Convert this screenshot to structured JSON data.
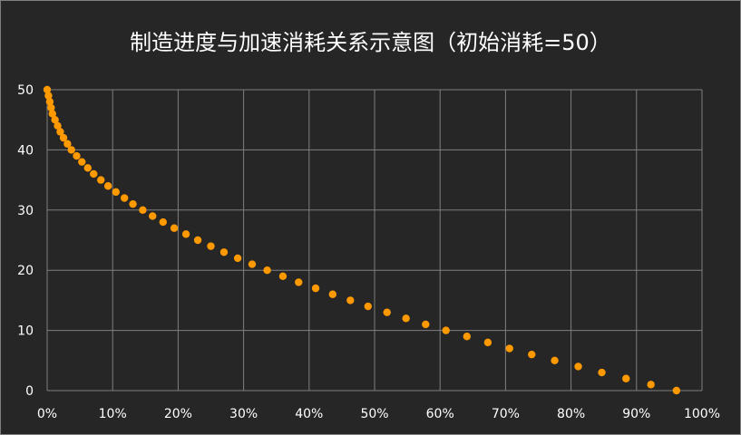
{
  "chart_data": {
    "type": "scatter",
    "title": "制造进度与加速消耗关系示意图（初始消耗=50）",
    "xlabel": "",
    "ylabel": "",
    "xlim": [
      0,
      1
    ],
    "ylim": [
      0,
      50
    ],
    "x_ticks": [
      "0%",
      "10%",
      "20%",
      "30%",
      "40%",
      "50%",
      "60%",
      "70%",
      "80%",
      "90%",
      "100%"
    ],
    "y_ticks": [
      "0",
      "10",
      "20",
      "30",
      "40",
      "50"
    ],
    "grid": true,
    "legend": "none",
    "colors": {
      "background": "#262626",
      "grid": "#7f7f7f",
      "points": "#ff9900",
      "text": "#ffffff"
    },
    "series": [
      {
        "points": [
          [
            0.0,
            50
          ],
          [
            0.002,
            49
          ],
          [
            0.004,
            48
          ],
          [
            0.006,
            47
          ],
          [
            0.008,
            46
          ],
          [
            0.012,
            45
          ],
          [
            0.016,
            44
          ],
          [
            0.02,
            43
          ],
          [
            0.025,
            42
          ],
          [
            0.031,
            41
          ],
          [
            0.037,
            40
          ],
          [
            0.045,
            39
          ],
          [
            0.053,
            38
          ],
          [
            0.062,
            37
          ],
          [
            0.071,
            36
          ],
          [
            0.082,
            35
          ],
          [
            0.093,
            34
          ],
          [
            0.105,
            33
          ],
          [
            0.118,
            32
          ],
          [
            0.131,
            31
          ],
          [
            0.146,
            30
          ],
          [
            0.161,
            29
          ],
          [
            0.177,
            28
          ],
          [
            0.194,
            27
          ],
          [
            0.212,
            26
          ],
          [
            0.23,
            25
          ],
          [
            0.25,
            24
          ],
          [
            0.27,
            23
          ],
          [
            0.291,
            22
          ],
          [
            0.313,
            21
          ],
          [
            0.336,
            20
          ],
          [
            0.36,
            19
          ],
          [
            0.384,
            18
          ],
          [
            0.41,
            17
          ],
          [
            0.436,
            16
          ],
          [
            0.463,
            15
          ],
          [
            0.49,
            14
          ],
          [
            0.519,
            13
          ],
          [
            0.548,
            12
          ],
          [
            0.578,
            11
          ],
          [
            0.609,
            10
          ],
          [
            0.641,
            9
          ],
          [
            0.673,
            8
          ],
          [
            0.706,
            7
          ],
          [
            0.74,
            6
          ],
          [
            0.775,
            5
          ],
          [
            0.811,
            4
          ],
          [
            0.847,
            3
          ],
          [
            0.884,
            2
          ],
          [
            0.922,
            1
          ],
          [
            0.961,
            0
          ]
        ]
      }
    ]
  }
}
